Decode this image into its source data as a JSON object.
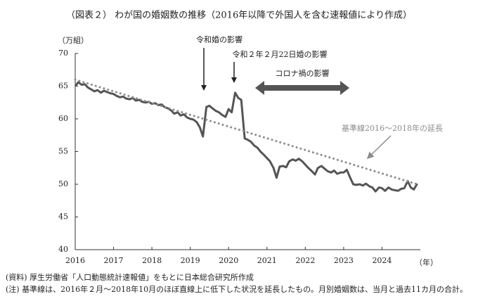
{
  "chart_data": {
    "type": "line",
    "title": "（図表２） わが国の婚姻数の推移（2016年以降で外国人を含む速報値により作成）",
    "y_label": "（万組）",
    "x_label": "（年）",
    "xlim": [
      2016,
      2025
    ],
    "xticks": [
      2016,
      2017,
      2018,
      2019,
      2020,
      2021,
      2022,
      2023,
      2024
    ],
    "ylim": [
      40,
      70
    ],
    "yticks": [
      40,
      45,
      50,
      55,
      60,
      65,
      70
    ],
    "series": [
      {
        "color": "#555555",
        "style": "solid",
        "x": [
          2016.0,
          2016.08,
          2016.17,
          2016.25,
          2016.33,
          2016.42,
          2016.5,
          2016.58,
          2016.67,
          2016.75,
          2016.83,
          2016.92,
          2017.0,
          2017.08,
          2017.17,
          2017.25,
          2017.33,
          2017.42,
          2017.5,
          2017.58,
          2017.67,
          2017.75,
          2017.83,
          2017.92,
          2018.0,
          2018.08,
          2018.17,
          2018.25,
          2018.33,
          2018.42,
          2018.5,
          2018.58,
          2018.67,
          2018.75,
          2018.83,
          2018.92,
          2019.0,
          2019.08,
          2019.17,
          2019.25,
          2019.33,
          2019.42,
          2019.5,
          2019.58,
          2019.67,
          2019.75,
          2019.83,
          2019.92,
          2020.0,
          2020.08,
          2020.17,
          2020.25,
          2020.33,
          2020.42,
          2020.5,
          2020.58,
          2020.67,
          2020.75,
          2020.83,
          2020.92,
          2021.0,
          2021.08,
          2021.17,
          2021.25,
          2021.33,
          2021.42,
          2021.5,
          2021.58,
          2021.67,
          2021.75,
          2021.83,
          2021.92,
          2022.0,
          2022.08,
          2022.17,
          2022.25,
          2022.33,
          2022.42,
          2022.5,
          2022.58,
          2022.67,
          2022.75,
          2022.83,
          2022.92,
          2023.0,
          2023.08,
          2023.17,
          2023.25,
          2023.33,
          2023.42,
          2023.5,
          2023.58,
          2023.67,
          2023.75,
          2023.83,
          2023.92,
          2024.0,
          2024.08,
          2024.17,
          2024.25,
          2024.33,
          2024.42,
          2024.5,
          2024.58,
          2024.67,
          2024.75,
          2024.83,
          2024.92
        ],
        "values": [
          65.0,
          65.6,
          65.2,
          65.3,
          64.8,
          64.5,
          64.2,
          64.4,
          64.0,
          64.3,
          64.1,
          63.9,
          63.8,
          63.5,
          63.3,
          63.4,
          63.1,
          63.0,
          63.2,
          62.8,
          62.9,
          62.6,
          62.5,
          62.6,
          62.3,
          62.4,
          62.1,
          62.2,
          61.8,
          61.6,
          61.3,
          60.8,
          61.0,
          60.5,
          60.7,
          60.2,
          60.0,
          59.9,
          59.5,
          58.7,
          57.3,
          61.8,
          62.0,
          61.6,
          61.2,
          61.0,
          60.6,
          60.3,
          61.5,
          61.0,
          64.0,
          63.2,
          62.9,
          57.0,
          56.8,
          56.5,
          55.9,
          55.6,
          55.0,
          54.5,
          54.0,
          53.5,
          52.5,
          51.0,
          52.7,
          52.8,
          52.6,
          53.5,
          53.8,
          53.6,
          53.9,
          53.5,
          53.0,
          52.5,
          52.0,
          51.5,
          52.5,
          52.8,
          52.4,
          52.0,
          51.8,
          52.1,
          51.6,
          51.8,
          51.8,
          52.2,
          51.0,
          50.0,
          49.9,
          50.0,
          49.8,
          50.1,
          49.7,
          49.5,
          48.9,
          49.5,
          49.4,
          49.0,
          49.5,
          49.2,
          49.1,
          49.0,
          49.3,
          49.4,
          50.5,
          49.5,
          49.2,
          50.1
        ]
      },
      {
        "color": "#8c8c8c",
        "style": "dotted",
        "x": [
          2016.0,
          2024.92
        ],
        "values": [
          66.0,
          50.0
        ]
      }
    ],
    "annotations": [
      "令和婚の影響",
      "令和２年２月22日婚の影響",
      "コロナ禍の影響",
      "基準線2016～2018年の延長"
    ],
    "notes": [
      "(資料) 厚生労働省「人口動態統計速報値」をもとに日本総合研究所作成",
      "(注) 基準線は、2016年２月～2018年10月のほぼ直線上に低下した状況を延長したもの。月別婚姻数は、当月と過去11カ月の合計。"
    ]
  }
}
